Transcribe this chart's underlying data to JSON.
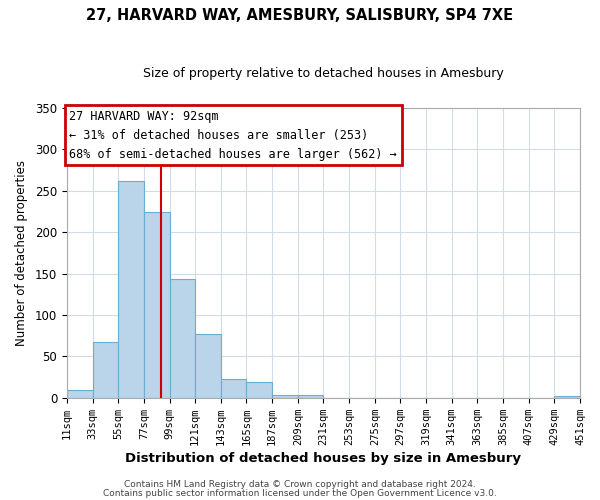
{
  "title": "27, HARVARD WAY, AMESBURY, SALISBURY, SP4 7XE",
  "subtitle": "Size of property relative to detached houses in Amesbury",
  "xlabel": "Distribution of detached houses by size in Amesbury",
  "ylabel": "Number of detached properties",
  "bin_edges": [
    11,
    33,
    55,
    77,
    99,
    121,
    143,
    165,
    187,
    209,
    231,
    253,
    275,
    297,
    319,
    341,
    363,
    385,
    407,
    429,
    451
  ],
  "bar_heights": [
    10,
    68,
    262,
    225,
    143,
    77,
    23,
    19,
    4,
    4,
    0,
    0,
    0,
    0,
    0,
    0,
    0,
    0,
    0,
    2
  ],
  "bar_color": "#bad4ea",
  "bar_edgecolor": "#6aaed6",
  "property_size": 92,
  "vline_color": "#cc0000",
  "ylim": [
    0,
    350
  ],
  "xlim": [
    11,
    451
  ],
  "annotation_title": "27 HARVARD WAY: 92sqm",
  "annotation_line1": "← 31% of detached houses are smaller (253)",
  "annotation_line2": "68% of semi-detached houses are larger (562) →",
  "annotation_box_color": "#cc0000",
  "tick_labels": [
    "11sqm",
    "33sqm",
    "55sqm",
    "77sqm",
    "99sqm",
    "121sqm",
    "143sqm",
    "165sqm",
    "187sqm",
    "209sqm",
    "231sqm",
    "253sqm",
    "275sqm",
    "297sqm",
    "319sqm",
    "341sqm",
    "363sqm",
    "385sqm",
    "407sqm",
    "429sqm",
    "451sqm"
  ],
  "footer_line1": "Contains HM Land Registry data © Crown copyright and database right 2024.",
  "footer_line2": "Contains public sector information licensed under the Open Government Licence v3.0.",
  "background_color": "#ffffff",
  "plot_background_color": "#ffffff",
  "grid_color": "#d0dde8"
}
